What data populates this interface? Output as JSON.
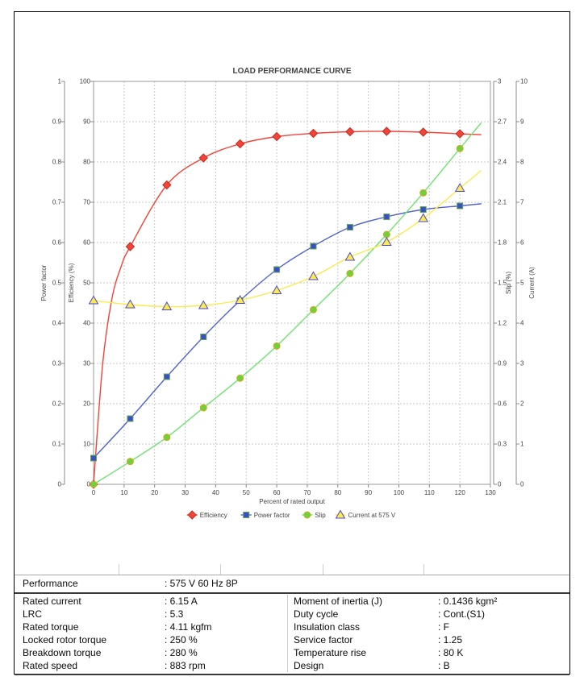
{
  "chart_data": {
    "type": "line",
    "title": "LOAD PERFORMANCE CURVE",
    "xlabel": "Percent of rated output",
    "x": [
      0,
      12,
      24,
      36,
      48,
      60,
      72,
      84,
      96,
      108,
      120
    ],
    "xlim": [
      0,
      130
    ],
    "x_tick_step": 10,
    "grid": true,
    "legend_position": "bottom",
    "axes": {
      "power_factor": {
        "label": "Power factor",
        "min": 0,
        "max": 1,
        "step": 0.1,
        "side": "left"
      },
      "efficiency": {
        "label": "Efficiency (%)",
        "min": 0,
        "max": 100,
        "step": 10,
        "side": "left"
      },
      "slip": {
        "label": "Slip (%)",
        "min": 0,
        "max": 3,
        "step": 0.3,
        "side": "right"
      },
      "current": {
        "label": "Current (A)",
        "min": 0,
        "max": 10,
        "step": 1,
        "side": "right"
      }
    },
    "series": [
      {
        "name": "Efficiency",
        "axis": "efficiency",
        "marker": "diamond",
        "line_color": "#f04438",
        "fill": "#f2453a",
        "border": "#c8281e",
        "values": [
          0,
          59,
          74.3,
          81,
          84.5,
          86.3,
          87.1,
          87.5,
          87.6,
          87.4,
          87
        ],
        "curve_points": [
          [
            3,
            30
          ],
          [
            6,
            46
          ],
          [
            9,
            54
          ]
        ]
      },
      {
        "name": "Power factor",
        "axis": "power_factor",
        "marker": "square",
        "line_color": "#5161d0",
        "fill": "#3b4ec4",
        "border": "#5faa50",
        "values": [
          0.065,
          0.163,
          0.267,
          0.366,
          0.456,
          0.533,
          0.591,
          0.638,
          0.664,
          0.682,
          0.691
        ],
        "curve_points": []
      },
      {
        "name": "Slip",
        "axis": "slip",
        "marker": "circle",
        "line_color": "#6fe36f",
        "fill": "#6cd43a",
        "border": "#d9a520",
        "values": [
          0,
          0.17,
          0.35,
          0.57,
          0.79,
          1.03,
          1.3,
          1.57,
          1.86,
          2.17,
          2.5
        ],
        "curve_points": []
      },
      {
        "name": "Current at 575 V",
        "axis": "current",
        "marker": "triangle",
        "line_color": "#fbe94e",
        "fill": "#fce94f",
        "border": "#4a4ad4",
        "values": [
          4.56,
          4.46,
          4.41,
          4.44,
          4.57,
          4.81,
          5.16,
          5.64,
          6.01,
          6.6,
          7.35
        ],
        "curve_points": []
      }
    ]
  },
  "spec_table": {
    "performance": {
      "label": "Performance",
      "value": ": 575 V 60 Hz 8P"
    },
    "rows": [
      {
        "l_label": "Rated current",
        "l_value": ": 6.15 A",
        "r_label": "Moment of inertia (J)",
        "r_value": ": 0.1436 kgm²"
      },
      {
        "l_label": "LRC",
        "l_value": ": 5.3",
        "r_label": "Duty cycle",
        "r_value": ": Cont.(S1)"
      },
      {
        "l_label": "Rated torque",
        "l_value": ": 4.11 kgfm",
        "r_label": "Insulation class",
        "r_value": ": F"
      },
      {
        "l_label": "Locked rotor torque",
        "l_value": ": 250 %",
        "r_label": "Service factor",
        "r_value": ": 1.25"
      },
      {
        "l_label": "Breakdown torque",
        "l_value": ": 280 %",
        "r_label": "Temperature rise",
        "r_value": ": 80 K"
      },
      {
        "l_label": "Rated speed",
        "l_value": ": 883 rpm",
        "r_label": "Design",
        "r_value": ": B"
      }
    ]
  },
  "colors": {
    "grid": "#c9c9c9",
    "plot_border": "#9a9a9a",
    "axis_line": "#888888",
    "tick_text": "#444444",
    "legend_text": "#666666",
    "title_text": "#222222"
  }
}
